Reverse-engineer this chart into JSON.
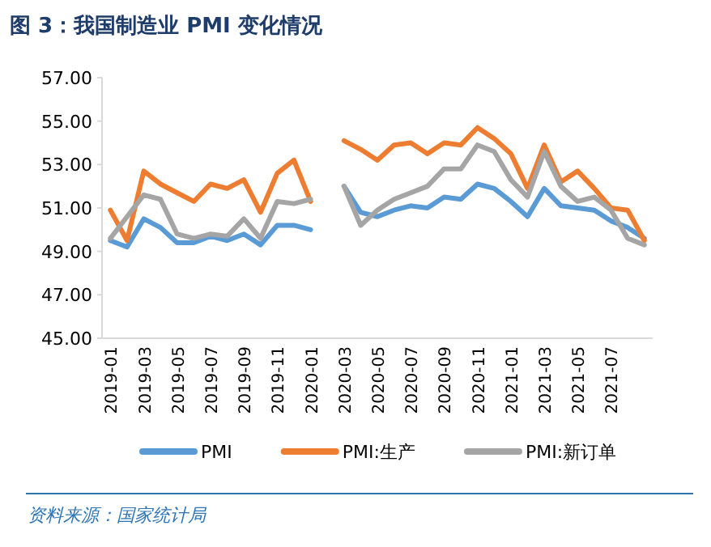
{
  "chart_data": {
    "type": "line",
    "title": "图 3：我国制造业 PMI 变化情况",
    "categories": [
      "2019-01",
      null,
      "2019-03",
      null,
      "2019-05",
      null,
      "2019-07",
      null,
      "2019-09",
      null,
      "2019-11",
      null,
      "2020-01",
      null,
      "2020-03",
      null,
      "2020-05",
      null,
      "2020-07",
      null,
      "2020-09",
      null,
      "2020-11",
      null,
      "2021-01",
      null,
      "2021-03",
      null,
      "2021-05",
      null,
      "2021-07",
      null,
      null
    ],
    "series": [
      {
        "name": "PMI",
        "color": "#5b9bd5",
        "values": [
          49.5,
          49.2,
          50.5,
          50.1,
          49.4,
          49.4,
          49.7,
          49.5,
          49.8,
          49.3,
          50.2,
          50.2,
          50.0,
          null,
          52.0,
          50.8,
          50.6,
          50.9,
          51.1,
          51.0,
          51.5,
          51.4,
          52.1,
          51.9,
          51.3,
          50.6,
          51.9,
          51.1,
          51.0,
          50.9,
          50.4,
          50.1,
          49.6
        ]
      },
      {
        "name": "PMI:生产",
        "color": "#ed7d31",
        "values": [
          50.9,
          49.5,
          52.7,
          52.1,
          51.7,
          51.3,
          52.1,
          51.9,
          52.3,
          50.8,
          52.6,
          53.2,
          51.3,
          null,
          54.1,
          53.7,
          53.2,
          53.9,
          54.0,
          53.5,
          54.0,
          53.9,
          54.7,
          54.2,
          53.5,
          51.9,
          53.9,
          52.2,
          52.7,
          51.9,
          51.0,
          50.9,
          49.5
        ]
      },
      {
        "name": "PMI:新订单",
        "color": "#a5a5a5",
        "values": [
          49.6,
          50.6,
          51.6,
          51.4,
          49.8,
          49.6,
          49.8,
          49.7,
          50.5,
          49.6,
          51.3,
          51.2,
          51.4,
          null,
          52.0,
          50.2,
          50.9,
          51.4,
          51.7,
          52.0,
          52.8,
          52.8,
          53.9,
          53.6,
          52.3,
          51.5,
          53.6,
          52.0,
          51.3,
          51.5,
          50.9,
          49.6,
          49.3
        ]
      }
    ],
    "ylim": [
      45,
      57
    ],
    "yticks": [
      {
        "value": 45,
        "label": "45.00"
      },
      {
        "value": 47,
        "label": "47.00"
      },
      {
        "value": 49,
        "label": "49.00"
      },
      {
        "value": 51,
        "label": "51.00"
      },
      {
        "value": 53,
        "label": "53.00"
      },
      {
        "value": 55,
        "label": "55.00"
      },
      {
        "value": 57,
        "label": "57.00"
      }
    ],
    "legend": "bottom",
    "annotations": [
      "资料来源：国家统计局"
    ]
  }
}
